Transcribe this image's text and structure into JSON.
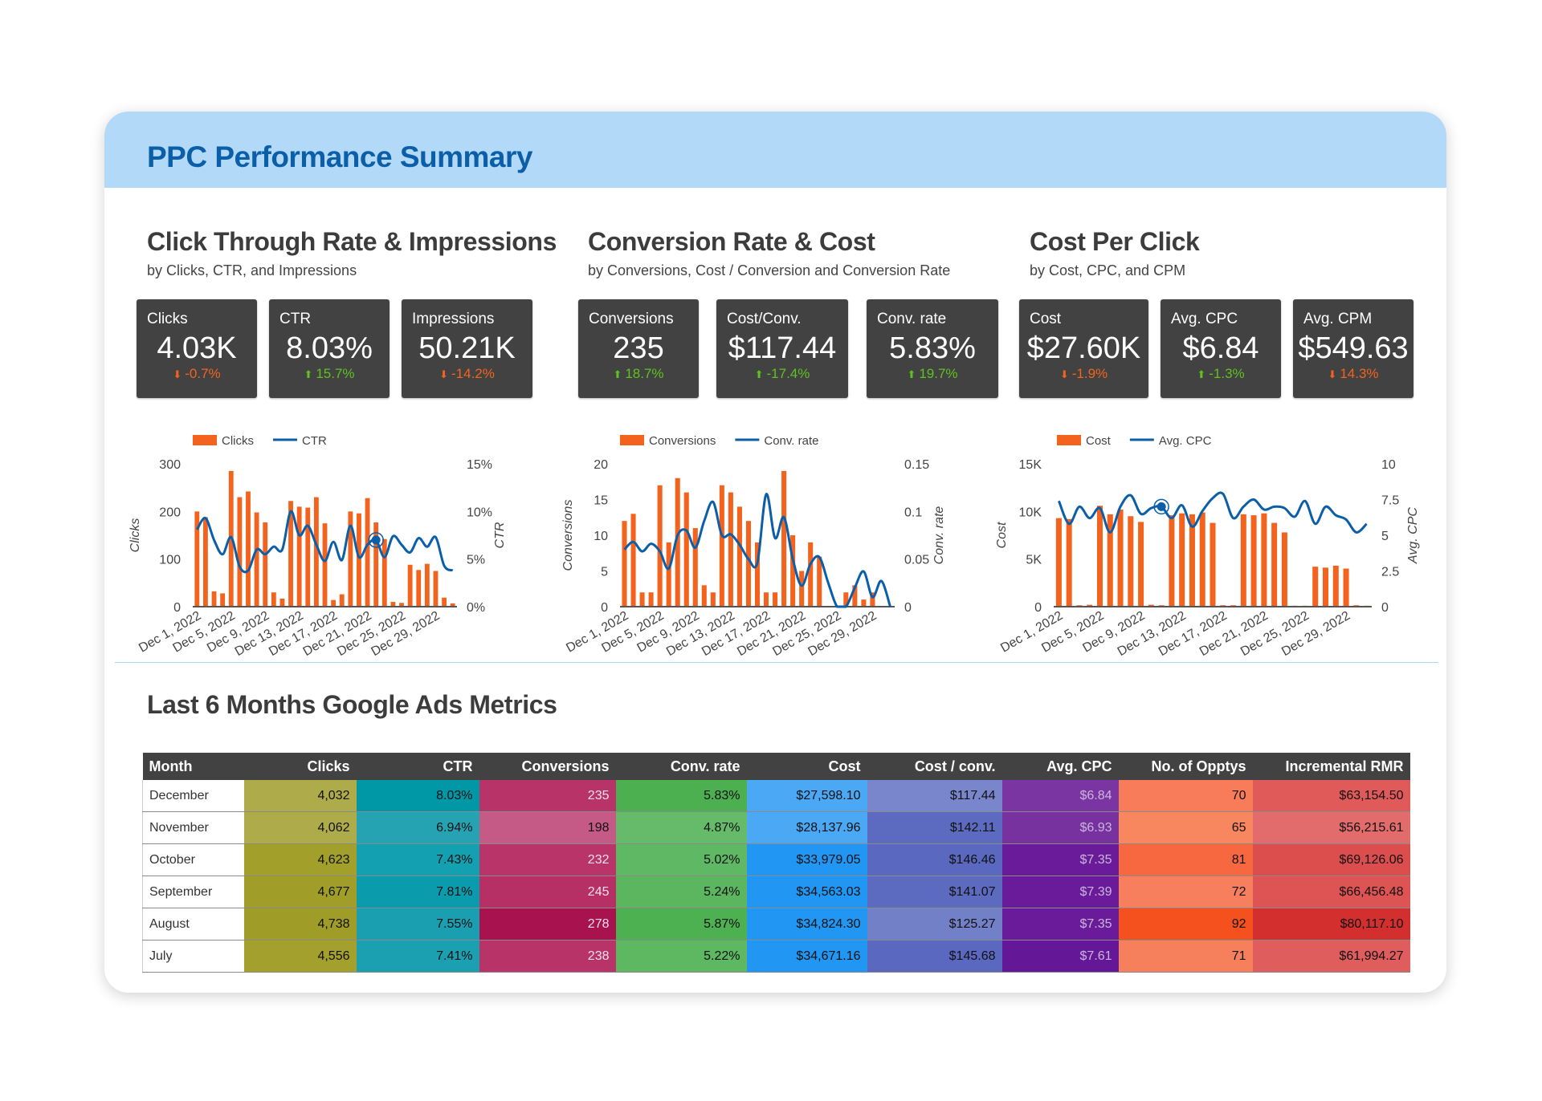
{
  "header": {
    "title": "PPC Performance Summary"
  },
  "sections": [
    {
      "title": "Click Through Rate & Impressions",
      "subtitle": "by Clicks, CTR, and Impressions"
    },
    {
      "title": "Conversion Rate & Cost",
      "subtitle": "by Conversions, Cost / Conversion and Conversion Rate"
    },
    {
      "title": "Cost Per Click",
      "subtitle": "by Cost, CPC, and CPM"
    }
  ],
  "kpis": [
    {
      "label": "Clicks",
      "value": "4.03K",
      "delta": "-0.7%",
      "direction": "down"
    },
    {
      "label": "CTR",
      "value": "8.03%",
      "delta": "15.7%",
      "direction": "up"
    },
    {
      "label": "Impressions",
      "value": "50.21K",
      "delta": "-14.2%",
      "direction": "down"
    },
    {
      "label": "Conversions",
      "value": "235",
      "delta": "18.7%",
      "direction": "up"
    },
    {
      "label": "Cost/Conv.",
      "value": "$117.44",
      "delta": "-17.4%",
      "direction": "up"
    },
    {
      "label": "Conv. rate",
      "value": "5.83%",
      "delta": "19.7%",
      "direction": "up"
    },
    {
      "label": "Cost",
      "value": "$27.60K",
      "delta": "-1.9%",
      "direction": "down"
    },
    {
      "label": "Avg. CPC",
      "value": "$6.84",
      "delta": "-1.3%",
      "direction": "up"
    },
    {
      "label": "Avg. CPM",
      "value": "$549.63",
      "delta": "14.3%",
      "direction": "down"
    }
  ],
  "colors": {
    "bar": "#f4631e",
    "line": "#0b5ea8",
    "up": "#5fc21f",
    "down": "#f4631e"
  },
  "chart_data": [
    {
      "type": "bar+line",
      "x_tick_labels": [
        "Dec 1, 2022",
        "Dec 5, 2022",
        "Dec 9, 2022",
        "Dec 13, 2022",
        "Dec 17, 2022",
        "Dec 21, 2022",
        "Dec 25, 2022",
        "Dec 29, 2022"
      ],
      "bar_series": {
        "name": "Clicks",
        "values": [
          200,
          188,
          32,
          28,
          285,
          230,
          242,
          198,
          177,
          30,
          17,
          222,
          210,
          208,
          230,
          175,
          14,
          26,
          200,
          196,
          228,
          177,
          142,
          10,
          8,
          88,
          77,
          90,
          75,
          19,
          7
        ]
      },
      "line_series": {
        "name": "CTR",
        "values": [
          8.1,
          9.3,
          7.0,
          5.5,
          7.3,
          4.2,
          3.8,
          6.0,
          5.5,
          6.3,
          6.0,
          10.0,
          7.5,
          8.5,
          6.5,
          4.8,
          6.8,
          4.9,
          8.5,
          5.2,
          6.5,
          7.0,
          5.2,
          7.4,
          6.5,
          5.7,
          7.2,
          6.3,
          7.3,
          4.3,
          3.8
        ]
      },
      "ylabel": "Clicks",
      "y2label": "CTR",
      "ylim": [
        0,
        300
      ],
      "y2lim": [
        0,
        15
      ],
      "y_ticks": [
        "0",
        "100",
        "200",
        "300"
      ],
      "y2_ticks": [
        "0%",
        "5%",
        "10%",
        "15%"
      ],
      "highlight_index": 21,
      "legend": "top"
    },
    {
      "type": "bar+line",
      "x_tick_labels": [
        "Dec 1, 2022",
        "Dec 5, 2022",
        "Dec 9, 2022",
        "Dec 13, 2022",
        "Dec 17, 2022",
        "Dec 21, 2022",
        "Dec 25, 2022",
        "Dec 29, 2022"
      ],
      "bar_series": {
        "name": "Conversions",
        "values": [
          12,
          13,
          2,
          2,
          17,
          9,
          18,
          16,
          11,
          3,
          2,
          17,
          16,
          14,
          12,
          9,
          2,
          2,
          19,
          10,
          5,
          9,
          7,
          0,
          0,
          2,
          3,
          1,
          2,
          0,
          0
        ]
      },
      "line_series": {
        "name": "Conv. rate",
        "values": [
          0.06,
          0.068,
          0.058,
          0.066,
          0.058,
          0.04,
          0.075,
          0.08,
          0.062,
          0.09,
          0.11,
          0.075,
          0.076,
          0.065,
          0.05,
          0.046,
          0.118,
          0.072,
          0.094,
          0.05,
          0.022,
          0.045,
          0.052,
          0.025,
          0,
          0,
          0.02,
          0.037,
          0.01,
          0.027,
          0
        ]
      },
      "ylabel": "Conversions",
      "y2label": "Conv. rate",
      "ylim": [
        0,
        20
      ],
      "y2lim": [
        0,
        0.15
      ],
      "y_ticks": [
        "0",
        "5",
        "10",
        "15",
        "20"
      ],
      "y2_ticks": [
        "0",
        "0.05",
        "0.1",
        "0.15"
      ],
      "highlight_index": null,
      "legend": "top"
    },
    {
      "type": "bar+line",
      "x_tick_labels": [
        "Dec 1, 2022",
        "Dec 5, 2022",
        "Dec 9, 2022",
        "Dec 13, 2022",
        "Dec 17, 2022",
        "Dec 21, 2022",
        "Dec 25, 2022",
        "Dec 29, 2022"
      ],
      "bar_series": {
        "name": "Cost",
        "values": [
          9300,
          9200,
          150,
          200,
          10600,
          9700,
          10200,
          9500,
          8900,
          200,
          150,
          9600,
          9800,
          9700,
          9900,
          8800,
          150,
          150,
          9700,
          9600,
          9800,
          8800,
          7800,
          100,
          100,
          4200,
          4100,
          4300,
          4000,
          150,
          100
        ]
      },
      "line_series": {
        "name": "Avg. CPC",
        "values": [
          7.4,
          5.8,
          7.0,
          6.2,
          6.9,
          5.2,
          7.0,
          7.8,
          6.5,
          6.9,
          7.0,
          6.2,
          7.1,
          5.6,
          6.7,
          7.6,
          7.9,
          6.2,
          7.0,
          7.5,
          6.8,
          7.0,
          6.9,
          6.3,
          7.4,
          5.8,
          7.0,
          6.4,
          6.1,
          5.2,
          5.8
        ]
      },
      "ylabel": "Cost",
      "y2label": "Avg. CPC",
      "ylim": [
        0,
        15000
      ],
      "y2lim": [
        0,
        10
      ],
      "y_ticks": [
        "0",
        "5K",
        "10K",
        "15K"
      ],
      "y2_ticks": [
        "0",
        "2.5",
        "5",
        "7.5",
        "10"
      ],
      "highlight_index": 10,
      "legend": "top"
    }
  ],
  "table": {
    "title": "Last 6 Months Google Ads Metrics",
    "columns": [
      "Month",
      "Clicks",
      "CTR",
      "Conversions",
      "Conv. rate",
      "Cost",
      "Cost / conv.",
      "Avg. CPC",
      "No. of Opptys",
      "Incremental RMR"
    ],
    "rows": [
      [
        "December",
        "4,032",
        "8.03%",
        "235",
        "5.83%",
        "$27,598.10",
        "$117.44",
        "$6.84",
        "70",
        "$63,154.50"
      ],
      [
        "November",
        "4,062",
        "6.94%",
        "198",
        "4.87%",
        "$28,137.96",
        "$142.11",
        "$6.93",
        "65",
        "$56,215.61"
      ],
      [
        "October",
        "4,623",
        "7.43%",
        "232",
        "5.02%",
        "$33,979.05",
        "$146.46",
        "$7.35",
        "81",
        "$69,126.06"
      ],
      [
        "September",
        "4,677",
        "7.81%",
        "245",
        "5.24%",
        "$34,563.03",
        "$141.07",
        "$7.39",
        "72",
        "$66,456.48"
      ],
      [
        "August",
        "4,738",
        "7.55%",
        "278",
        "5.87%",
        "$34,824.30",
        "$125.27",
        "$7.35",
        "92",
        "$80,117.10"
      ],
      [
        "July",
        "4,556",
        "7.41%",
        "238",
        "5.22%",
        "$34,671.16",
        "$145.68",
        "$7.61",
        "71",
        "$61,994.27"
      ]
    ],
    "heat_colors": [
      [
        null,
        "#aeab4a",
        "#0097a7",
        "#b83468",
        "#4caf50",
        "#4aa8f4",
        "#7986cb",
        "#7b35a3",
        "#f87c5a",
        "#e05a5a"
      ],
      [
        null,
        "#aeab4a",
        "#26a3b3",
        "#c45a85",
        "#66bb6a",
        "#4aa8f4",
        "#5c6bc0",
        "#77329f",
        "#f8865f",
        "#e26b6b"
      ],
      [
        null,
        "#a2a02a",
        "#13a0b0",
        "#b83469",
        "#5fb863",
        "#2196f3",
        "#5a68bf",
        "#6a1b9a",
        "#f76840",
        "#dc4d4d"
      ],
      [
        null,
        "#a09e28",
        "#0a9cac",
        "#b62f65",
        "#5cb660",
        "#2196f3",
        "#5c6bc0",
        "#6a1b9a",
        "#f77f5e",
        "#de5454"
      ],
      [
        null,
        "#9f9d27",
        "#1a9fb0",
        "#a8124f",
        "#4db051",
        "#2196f3",
        "#7280c8",
        "#6a1b9a",
        "#f4511e",
        "#d32f2f"
      ],
      [
        null,
        "#a3a02d",
        "#1aa0b1",
        "#b83468",
        "#5eb862",
        "#2196f3",
        "#5a69bf",
        "#641797",
        "#f7805c",
        "#e05d5d"
      ]
    ]
  }
}
